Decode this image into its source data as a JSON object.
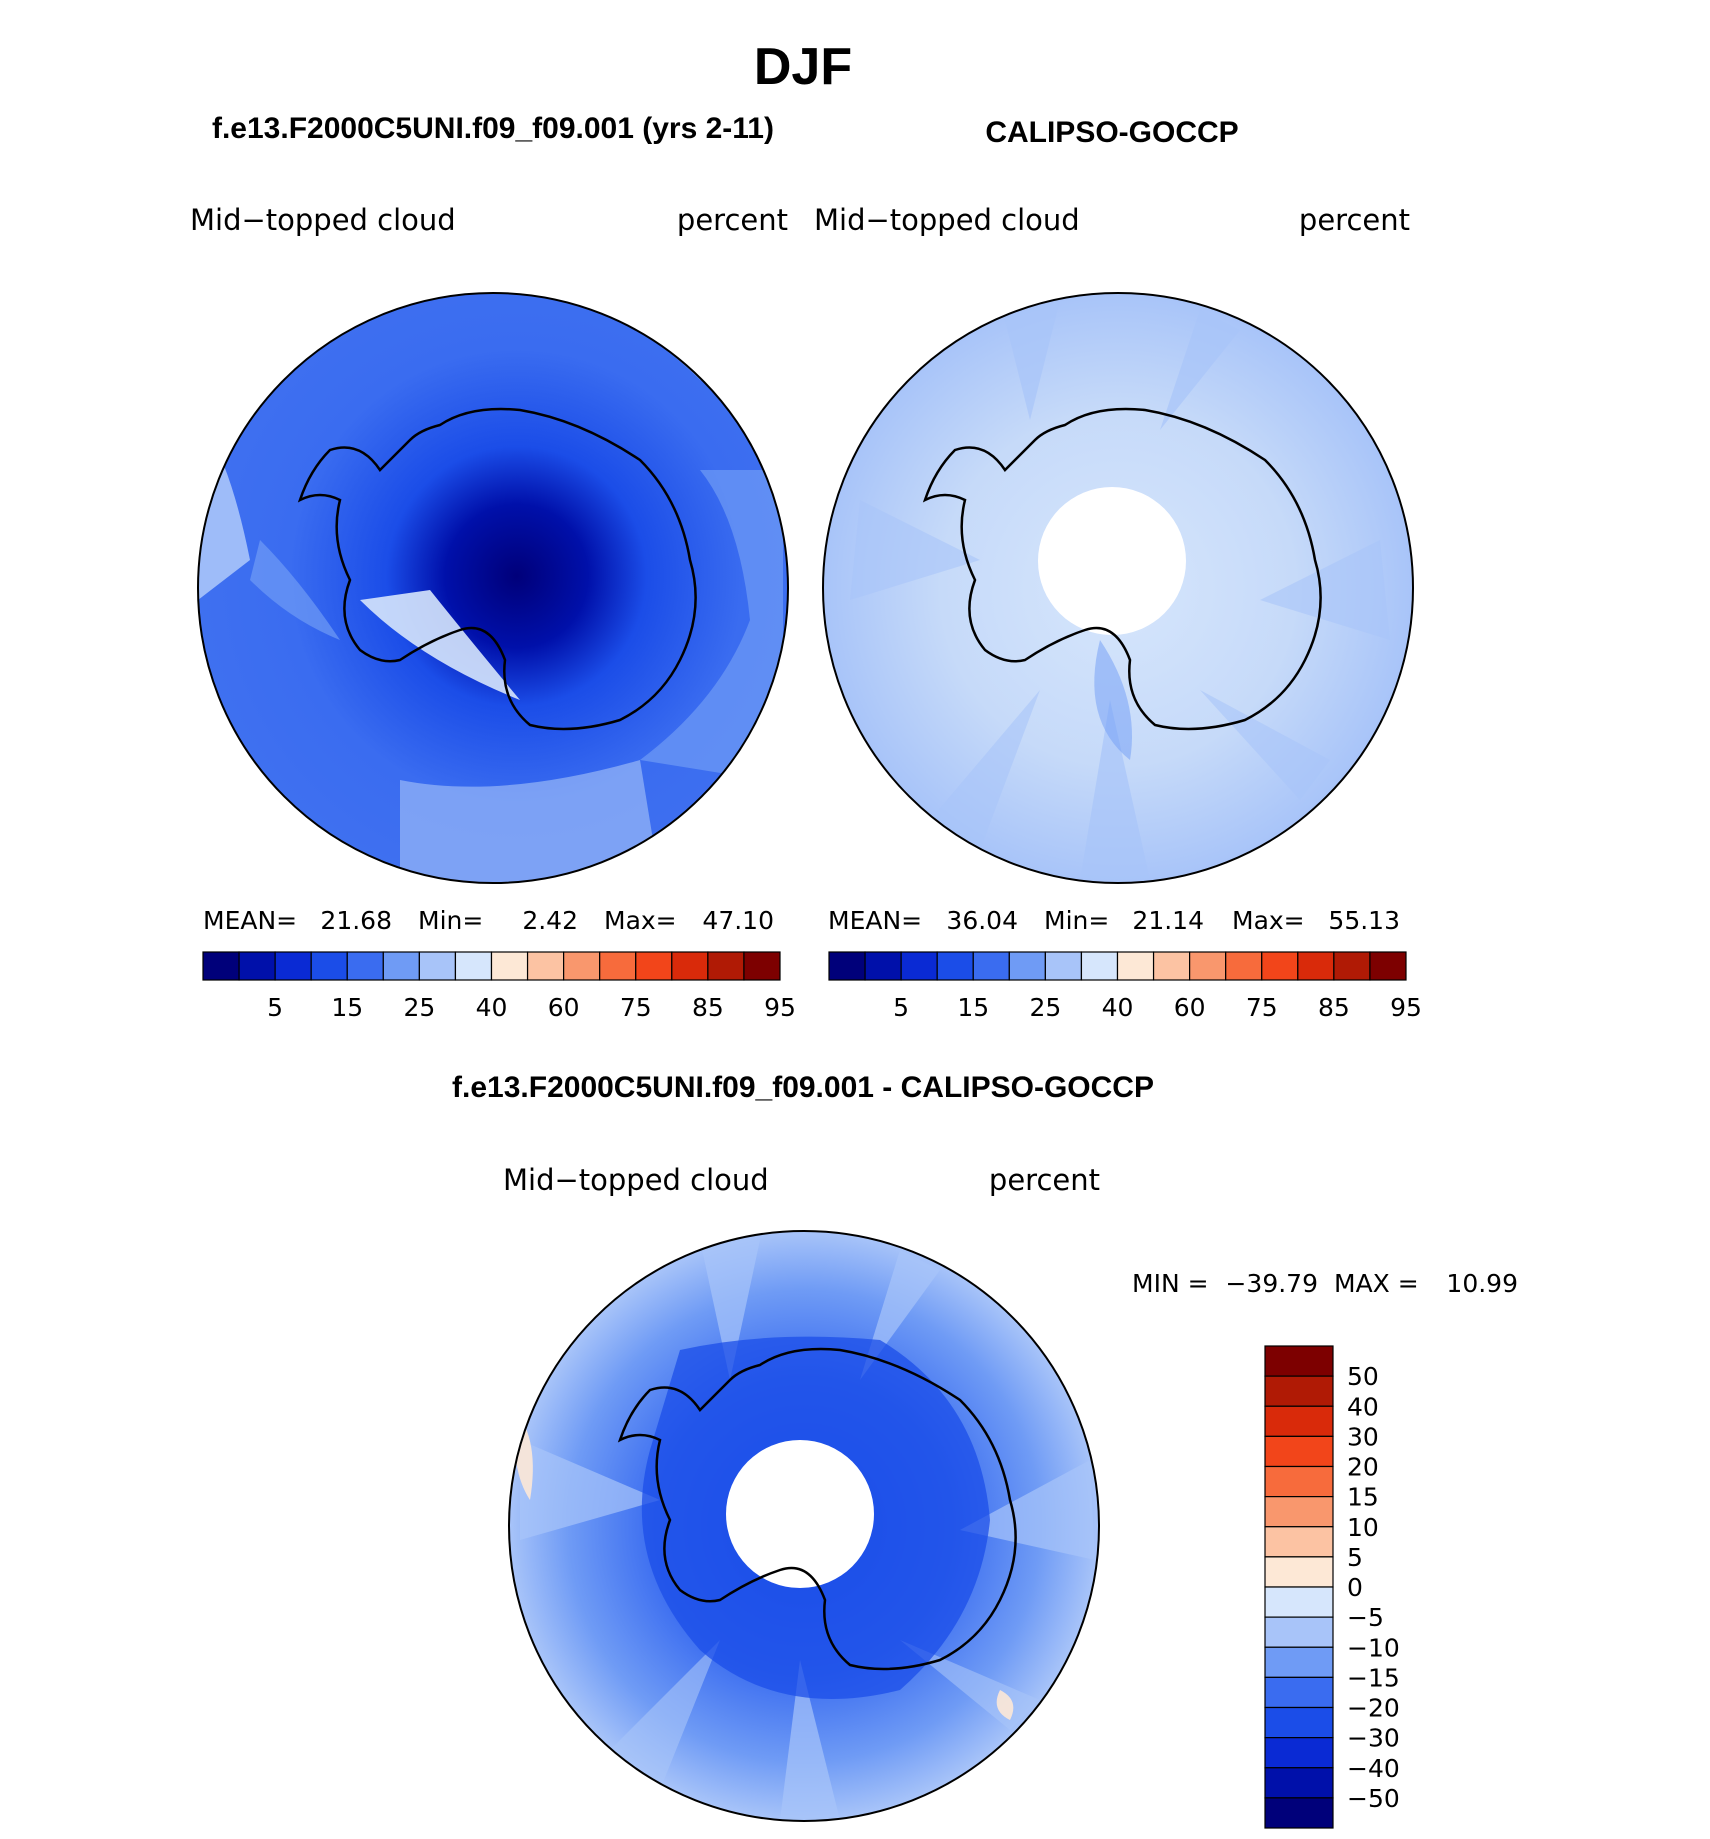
{
  "chart_data": {
    "type": "heatmap",
    "title": "DJF",
    "panels": [
      {
        "id": "model",
        "title": "f.e13.F2000C5UNI.f09_f09.001 (yrs 2-11)",
        "left_label": "Mid−topped cloud",
        "right_label": "percent",
        "stats": {
          "mean_label": "MEAN=",
          "mean": "21.68",
          "min_label": "Min=",
          "min": "2.42",
          "max_label": "Max=",
          "max": "47.10"
        },
        "levels": [
          5,
          15,
          25,
          40,
          60,
          75,
          85,
          95
        ]
      },
      {
        "id": "obs",
        "title": "CALIPSO-GOCCP",
        "left_label": "Mid−topped cloud",
        "right_label": "percent",
        "stats": {
          "mean_label": "MEAN=",
          "mean": "36.04",
          "min_label": "Min=",
          "min": "21.14",
          "max_label": "Max=",
          "max": "55.13"
        },
        "levels": [
          5,
          15,
          25,
          40,
          60,
          75,
          85,
          95
        ]
      },
      {
        "id": "diff",
        "title": "f.e13.F2000C5UNI.f09_f09.001 - CALIPSO-GOCCP",
        "left_label": "Mid−topped cloud",
        "right_label": "percent",
        "stats": {
          "min_label": "MIN =",
          "min": "−39.79",
          "max_label": "MAX =",
          "max": "10.99"
        },
        "levels": [
          "50",
          "40",
          "30",
          "20",
          "15",
          "10",
          "5",
          "0",
          "−5",
          "−10",
          "−15",
          "−20",
          "−30",
          "−40",
          "−50"
        ]
      }
    ],
    "colorbar_colors": [
      "#00007a",
      "#0010aa",
      "#0a2ad4",
      "#1b4de8",
      "#3a6cf0",
      "#6f9bf5",
      "#a8c4f9",
      "#d6e6fc",
      "#fde8d6",
      "#fcc3a3",
      "#f9976d",
      "#f76b3c",
      "#f2451a",
      "#d92a0a",
      "#b01a05",
      "#7d0000"
    ]
  }
}
